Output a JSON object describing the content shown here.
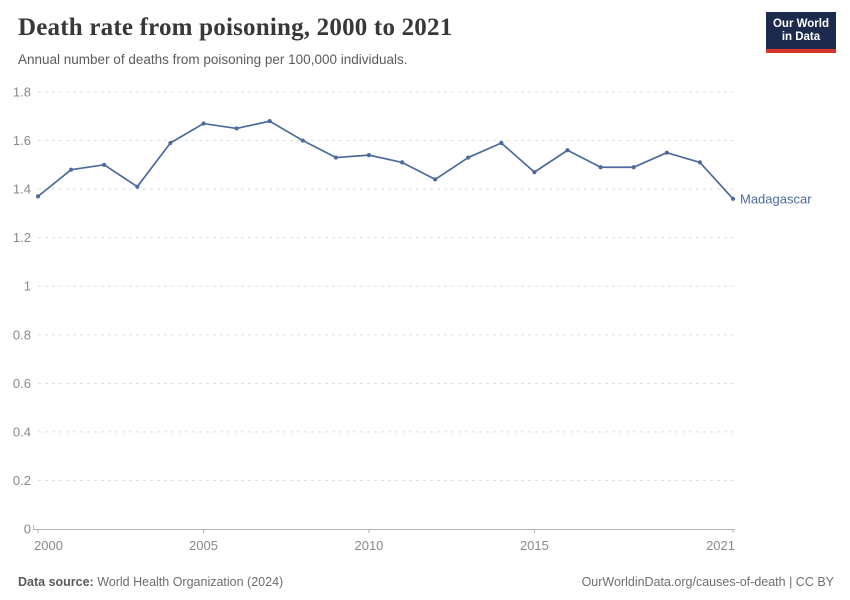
{
  "header": {
    "title": "Death rate from poisoning, 2000 to 2021",
    "subtitle": "Annual number of deaths from poisoning per 100,000 individuals."
  },
  "logo": {
    "line1": "Our World",
    "line2": "in Data",
    "bg_color": "#1B2A4D",
    "accent_color": "#D7342C"
  },
  "chart_data": {
    "type": "line",
    "title": "Death rate from poisoning, 2000 to 2021",
    "xlabel": "",
    "ylabel": "",
    "x": [
      2000,
      2001,
      2002,
      2003,
      2004,
      2005,
      2006,
      2007,
      2008,
      2009,
      2010,
      2011,
      2012,
      2013,
      2014,
      2015,
      2016,
      2017,
      2018,
      2019,
      2020,
      2021
    ],
    "series": [
      {
        "name": "Madagascar",
        "color": "#4C6A9C",
        "values": [
          1.37,
          1.48,
          1.5,
          1.41,
          1.59,
          1.67,
          1.65,
          1.68,
          1.6,
          1.53,
          1.54,
          1.51,
          1.44,
          1.53,
          1.59,
          1.47,
          1.56,
          1.49,
          1.49,
          1.55,
          1.51,
          1.36
        ]
      }
    ],
    "ylim": [
      0,
      1.8
    ],
    "ytick_labels": [
      "0",
      "0.2",
      "0.4",
      "0.6",
      "0.8",
      "1",
      "1.2",
      "1.4",
      "1.6",
      "1.8"
    ],
    "xticks": [
      2000,
      2005,
      2010,
      2015,
      2021
    ],
    "grid": "horizontal-dashed",
    "legend": "line-end-label"
  },
  "footer": {
    "source_label": "Data source:",
    "source_value": " World Health Organization (2024)",
    "attribution": "OurWorldinData.org/causes-of-death | CC BY"
  },
  "colors": {
    "line": "#4C6A9C",
    "grid": "#DEDEDE",
    "axis": "#B5B5B5",
    "tick_text": "#8A8A8A"
  }
}
